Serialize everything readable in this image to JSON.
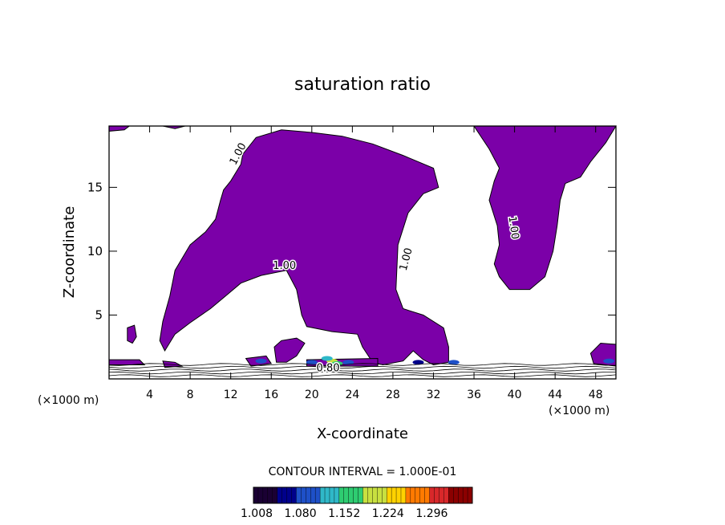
{
  "chart_data": {
    "type": "heatmap",
    "title": "saturation ratio",
    "xlabel": "X-coordinate",
    "ylabel": "Z-coordinate",
    "x_unit_left": "(×1000 m)",
    "x_unit_right": "(×1000 m)",
    "xlim": [
      0,
      50
    ],
    "ylim": [
      0,
      19.8
    ],
    "x_ticks": [
      4,
      8,
      12,
      16,
      20,
      24,
      28,
      32,
      36,
      40,
      44,
      48
    ],
    "y_ticks": [
      5,
      10,
      15
    ],
    "contour_interval_label": "CONTOUR INTERVAL = 1.000E-01",
    "contour_labels": [
      {
        "text": "1.00",
        "x": 13.0,
        "y": 17.5,
        "angle": -62
      },
      {
        "text": "1.00",
        "x": 17.3,
        "y": 8.6,
        "angle": 0
      },
      {
        "text": "1.00",
        "x": 29.6,
        "y": 9.3,
        "angle": -75
      },
      {
        "text": "1.00",
        "x": 39.6,
        "y": 11.8,
        "angle": 82
      },
      {
        "text": "0.80",
        "x": 21.6,
        "y": 0.6,
        "angle": 0
      }
    ],
    "colorbar": {
      "min": 1.008,
      "max": 1.33,
      "ticks": [
        "1.008",
        "1.080",
        "1.152",
        "1.224",
        "1.296"
      ],
      "colors": [
        "#1a0033",
        "#00008b",
        "#1e50c8",
        "#2fb8c8",
        "#2ecc71",
        "#c8e040",
        "#ffd200",
        "#ff7a00",
        "#d8282a",
        "#8b0000"
      ]
    },
    "fill_color": "#7b00a8",
    "regions": [
      {
        "name": "central-plume",
        "level": 1.008,
        "points": [
          [
            13.2,
            17.6
          ],
          [
            14.5,
            18.9
          ],
          [
            17.0,
            19.5
          ],
          [
            20.0,
            19.3
          ],
          [
            23.0,
            19.0
          ],
          [
            26.0,
            18.4
          ],
          [
            29.0,
            17.5
          ],
          [
            32.0,
            16.5
          ],
          [
            32.5,
            15.0
          ],
          [
            31.0,
            14.5
          ],
          [
            29.5,
            13.0
          ],
          [
            28.5,
            10.5
          ],
          [
            28.3,
            7.0
          ],
          [
            29.0,
            5.5
          ],
          [
            31.0,
            5.0
          ],
          [
            33.0,
            4.0
          ],
          [
            33.5,
            2.5
          ],
          [
            33.5,
            1.3
          ],
          [
            32.0,
            1.1
          ],
          [
            31.0,
            1.5
          ],
          [
            30.0,
            2.2
          ],
          [
            29.0,
            1.4
          ],
          [
            27.0,
            1.1
          ],
          [
            26.0,
            1.3
          ],
          [
            25.0,
            2.5
          ],
          [
            24.5,
            3.5
          ],
          [
            22.0,
            3.7
          ],
          [
            19.5,
            4.1
          ],
          [
            19.0,
            5.0
          ],
          [
            18.5,
            7.0
          ],
          [
            17.5,
            8.5
          ],
          [
            15.0,
            8.1
          ],
          [
            13.0,
            7.5
          ],
          [
            11.5,
            6.5
          ],
          [
            10.0,
            5.5
          ],
          [
            8.0,
            4.4
          ],
          [
            6.5,
            3.5
          ],
          [
            5.5,
            2.2
          ],
          [
            5.0,
            3.0
          ],
          [
            5.3,
            4.5
          ],
          [
            6.0,
            6.5
          ],
          [
            6.5,
            8.5
          ],
          [
            8.0,
            10.5
          ],
          [
            9.5,
            11.5
          ],
          [
            10.5,
            12.5
          ],
          [
            11.0,
            14.0
          ],
          [
            11.3,
            14.8
          ],
          [
            12.0,
            15.5
          ],
          [
            13.0,
            16.8
          ]
        ]
      },
      {
        "name": "right-plume",
        "level": 1.008,
        "points": [
          [
            36.0,
            19.8
          ],
          [
            50.0,
            19.8
          ],
          [
            49.0,
            18.5
          ],
          [
            47.5,
            17.0
          ],
          [
            46.5,
            15.8
          ],
          [
            45.0,
            15.3
          ],
          [
            44.5,
            14.0
          ],
          [
            44.2,
            12.0
          ],
          [
            43.8,
            10.0
          ],
          [
            43.0,
            8.0
          ],
          [
            41.5,
            7.0
          ],
          [
            39.5,
            7.0
          ],
          [
            38.5,
            8.0
          ],
          [
            38.0,
            9.0
          ],
          [
            38.5,
            10.5
          ],
          [
            38.3,
            12.0
          ],
          [
            37.5,
            14.0
          ],
          [
            38.0,
            15.5
          ],
          [
            38.5,
            16.5
          ],
          [
            37.5,
            18.0
          ]
        ]
      },
      {
        "name": "top-left-strip",
        "level": 1.008,
        "points": [
          [
            0.0,
            19.8
          ],
          [
            2.0,
            19.8
          ],
          [
            1.5,
            19.5
          ],
          [
            0.0,
            19.4
          ]
        ]
      },
      {
        "name": "top-mid-strip",
        "level": 1.008,
        "points": [
          [
            5.3,
            19.8
          ],
          [
            7.5,
            19.8
          ],
          [
            6.5,
            19.6
          ]
        ]
      },
      {
        "name": "small-blob-1",
        "level": 1.008,
        "points": [
          [
            1.8,
            4.0
          ],
          [
            2.5,
            4.2
          ],
          [
            2.7,
            3.3
          ],
          [
            2.3,
            2.8
          ],
          [
            1.8,
            3.0
          ]
        ]
      },
      {
        "name": "small-blob-2",
        "level": 1.008,
        "points": [
          [
            16.3,
            2.5
          ],
          [
            17.0,
            3.0
          ],
          [
            18.5,
            3.2
          ],
          [
            19.3,
            2.8
          ],
          [
            18.5,
            1.8
          ],
          [
            17.5,
            1.3
          ],
          [
            16.5,
            1.3
          ]
        ]
      },
      {
        "name": "right-edge-blob",
        "level": 1.008,
        "points": [
          [
            47.5,
            2.0
          ],
          [
            48.5,
            2.8
          ],
          [
            50.0,
            2.7
          ],
          [
            50.0,
            1.0
          ],
          [
            47.8,
            1.2
          ]
        ]
      },
      {
        "name": "lower-band",
        "level": 1.008,
        "points": [
          [
            0.0,
            1.5
          ],
          [
            3.0,
            1.5
          ],
          [
            3.5,
            1.1
          ],
          [
            0.0,
            1.1
          ]
        ]
      },
      {
        "name": "lower-band-2",
        "level": 1.008,
        "points": [
          [
            5.3,
            1.4
          ],
          [
            6.5,
            1.3
          ],
          [
            7.2,
            1.0
          ],
          [
            5.5,
            0.9
          ]
        ]
      },
      {
        "name": "lower-band-3",
        "level": 1.008,
        "points": [
          [
            13.5,
            1.6
          ],
          [
            15.5,
            1.8
          ],
          [
            16.0,
            1.2
          ],
          [
            14.0,
            1.0
          ]
        ]
      },
      {
        "name": "lower-band-4",
        "level": 1.008,
        "points": [
          [
            19.5,
            1.5
          ],
          [
            26.5,
            1.6
          ],
          [
            26.5,
            1.0
          ],
          [
            19.5,
            1.0
          ]
        ]
      }
    ],
    "hotspots": [
      {
        "x": 22.0,
        "y": 1.4,
        "value": 1.2
      },
      {
        "x": 22.5,
        "y": 1.2,
        "value": 1.16
      },
      {
        "x": 21.5,
        "y": 1.6,
        "value": 1.12
      },
      {
        "x": 15.0,
        "y": 1.4,
        "value": 1.08
      },
      {
        "x": 30.5,
        "y": 1.3,
        "value": 1.06
      },
      {
        "x": 34.0,
        "y": 1.3,
        "value": 1.08
      },
      {
        "x": 49.3,
        "y": 1.4,
        "value": 1.08
      },
      {
        "x": 20.0,
        "y": 1.3,
        "value": 1.1
      },
      {
        "x": 23.6,
        "y": 1.3,
        "value": 1.1
      }
    ]
  }
}
